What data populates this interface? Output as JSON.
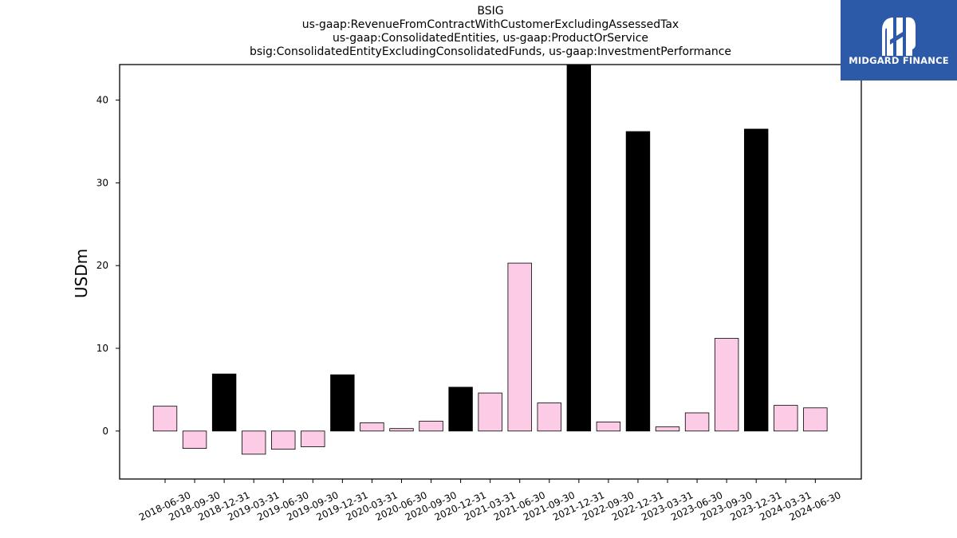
{
  "chart_data": {
    "type": "bar",
    "title_lines": [
      "BSIG",
      "us-gaap:RevenueFromContractWithCustomerExcludingAssessedTax",
      "us-gaap:ConsolidatedEntities, us-gaap:ProductOrService",
      "bsig:ConsolidatedEntityExcludingConsolidatedFunds, us-gaap:InvestmentPerformance"
    ],
    "xlabel": "",
    "ylabel": "USDm",
    "ylim": [
      -5.8,
      44.3
    ],
    "yticks": [
      0,
      10,
      20,
      30,
      40
    ],
    "grid": false,
    "categories": [
      "2018-06-30",
      "2018-09-30",
      "2018-12-31",
      "2019-03-31",
      "2019-06-30",
      "2019-09-30",
      "2019-12-31",
      "2020-03-31",
      "2020-06-30",
      "2020-09-30",
      "2020-12-31",
      "2021-03-31",
      "2021-06-30",
      "2021-09-30",
      "2021-12-31",
      "2022-09-30",
      "2022-12-31",
      "2023-03-31",
      "2023-06-30",
      "2023-09-30",
      "2023-12-31",
      "2024-03-31",
      "2024-06-30"
    ],
    "values": [
      3.0,
      -2.1,
      6.9,
      -2.8,
      -2.2,
      -1.9,
      6.8,
      1.0,
      0.3,
      1.2,
      5.3,
      4.6,
      20.3,
      3.4,
      44.3,
      1.1,
      36.2,
      0.5,
      2.2,
      11.2,
      36.5,
      3.1,
      2.8
    ],
    "bar_colors": [
      "#fccbe6",
      "#fccbe6",
      "#000000",
      "#fccbe6",
      "#fccbe6",
      "#fccbe6",
      "#000000",
      "#fccbe6",
      "#fccbe6",
      "#fccbe6",
      "#000000",
      "#fccbe6",
      "#fccbe6",
      "#fccbe6",
      "#000000",
      "#fccbe6",
      "#000000",
      "#fccbe6",
      "#fccbe6",
      "#fccbe6",
      "#000000",
      "#fccbe6",
      "#fccbe6"
    ]
  },
  "logo": {
    "text": "MIDGARD FINANCE",
    "background": "#2c5aa8",
    "foreground": "#ffffff"
  }
}
